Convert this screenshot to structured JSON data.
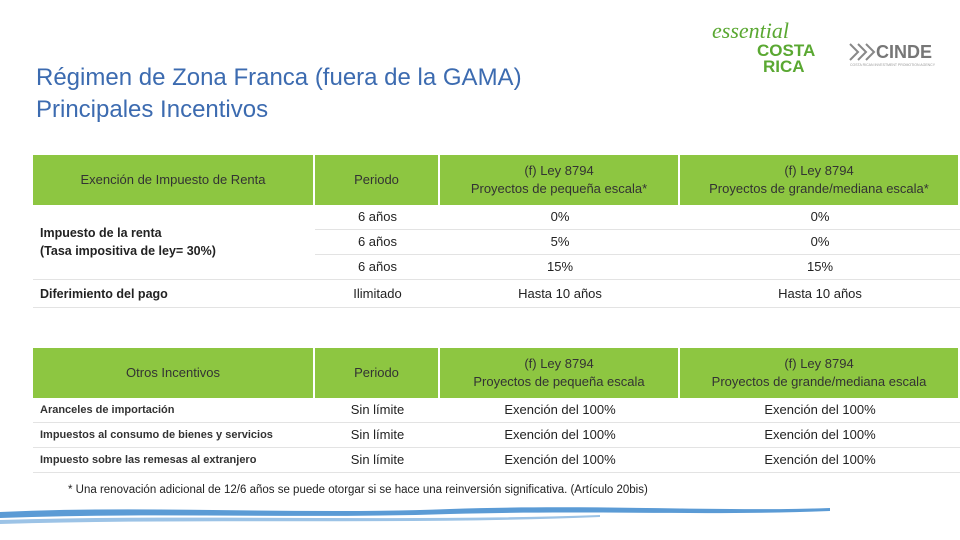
{
  "header": {
    "title_lines": [
      "Régimen de Zona Franca (fuera de la GAMA)",
      "Principales Incentivos"
    ]
  },
  "logos": {
    "essential": "essential",
    "costa": "COSTA",
    "rica": "RICA",
    "cinde": "CINDE",
    "cinde_tagline": "COSTA RICAN INVESTMENT PROMOTION AGENCY"
  },
  "table1": {
    "header": [
      [
        "Exención de Impuesto de Renta"
      ],
      [
        "Periodo"
      ],
      [
        "(f) Ley 8794",
        "Proyectos de pequeña escala*"
      ],
      [
        "(f) Ley 8794",
        "Proyectos de grande/mediana escala*"
      ]
    ],
    "group": [
      "Impuesto de la renta",
      "(Tasa impositiva de ley= 30%)"
    ],
    "rows": [
      [
        "6 años",
        "0%",
        "0%"
      ],
      [
        "6 años",
        "5%",
        "0%"
      ],
      [
        "6 años",
        "15%",
        "15%"
      ]
    ],
    "deferral": [
      "Diferimiento del pago",
      "Ilimitado",
      "Hasta 10 años",
      "Hasta 10 años"
    ]
  },
  "table2": {
    "header": [
      [
        "Otros Incentivos"
      ],
      [
        "Periodo"
      ],
      [
        "(f) Ley 8794",
        "Proyectos de pequeña escala"
      ],
      [
        "(f) Ley 8794",
        "Proyectos de grande/mediana escala"
      ]
    ],
    "rows": [
      [
        "Aranceles de importación",
        "Sin límite",
        "Exención del 100%",
        "Exención del 100%"
      ],
      [
        "Impuestos al consumo de bienes y servicios",
        "Sin límite",
        "Exención del 100%",
        "Exención del 100%"
      ],
      [
        "Impuesto sobre las remesas al extranjero",
        "Sin límite",
        "Exención del 100%",
        "Exención del 100%"
      ]
    ]
  },
  "footnote": "* Una renovación adicional de 12/6 años se puede otorgar si se hace una reinversión significativa. (Artículo 20bis)"
}
